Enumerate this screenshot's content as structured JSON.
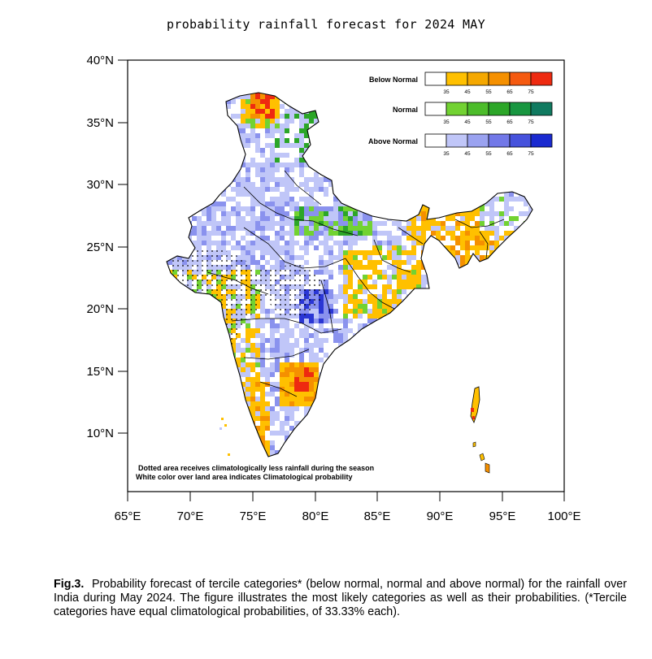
{
  "title": "probability rainfall forecast for 2024 MAY",
  "axes": {
    "y_ticks": [
      "40°N",
      "35°N",
      "30°N",
      "25°N",
      "20°N",
      "15°N",
      "10°N"
    ],
    "x_ticks": [
      "65°E",
      "70°E",
      "75°E",
      "80°E",
      "85°E",
      "90°E",
      "95°E",
      "100°E"
    ]
  },
  "legend": {
    "categories": [
      {
        "name": "Below Normal",
        "colors": [
          "#ffffff",
          "#ffc000",
          "#f5a800",
          "#f59000",
          "#f55a10",
          "#ee2a10"
        ]
      },
      {
        "name": "Normal",
        "colors": [
          "#ffffff",
          "#72d232",
          "#4cbc2a",
          "#2ca628",
          "#189640",
          "#107a60"
        ]
      },
      {
        "name": "Above Normal",
        "colors": [
          "#ffffff",
          "#c0c6f8",
          "#9aa2f0",
          "#7278e8",
          "#4652dc",
          "#1a2ad0"
        ]
      }
    ],
    "tick_labels": [
      "35",
      "45",
      "55",
      "65",
      "75"
    ]
  },
  "notes": {
    "dotted": "Dotted area receives climatologically less rainfall during the season",
    "white": "White color over land area indicates Climatological probability"
  },
  "caption": {
    "label": "Fig.3.",
    "text": "Probability forecast of tercile categories* (below normal, normal and above normal) for the rainfall over India during May 2024. The figure illustrates the most likely categories as well as their probabilities. (*Tercile categories have equal climatological probabilities, of 33.33% each)."
  },
  "colors": {
    "border": "#000000",
    "above_light": "#c0c6f8",
    "above_mid": "#8a92ee",
    "above_dark": "#2a36d4",
    "below_light": "#ffc000",
    "below_mid": "#f59000",
    "below_dark": "#ee2a10",
    "normal_light": "#72d232",
    "normal_dark": "#2ca628"
  }
}
